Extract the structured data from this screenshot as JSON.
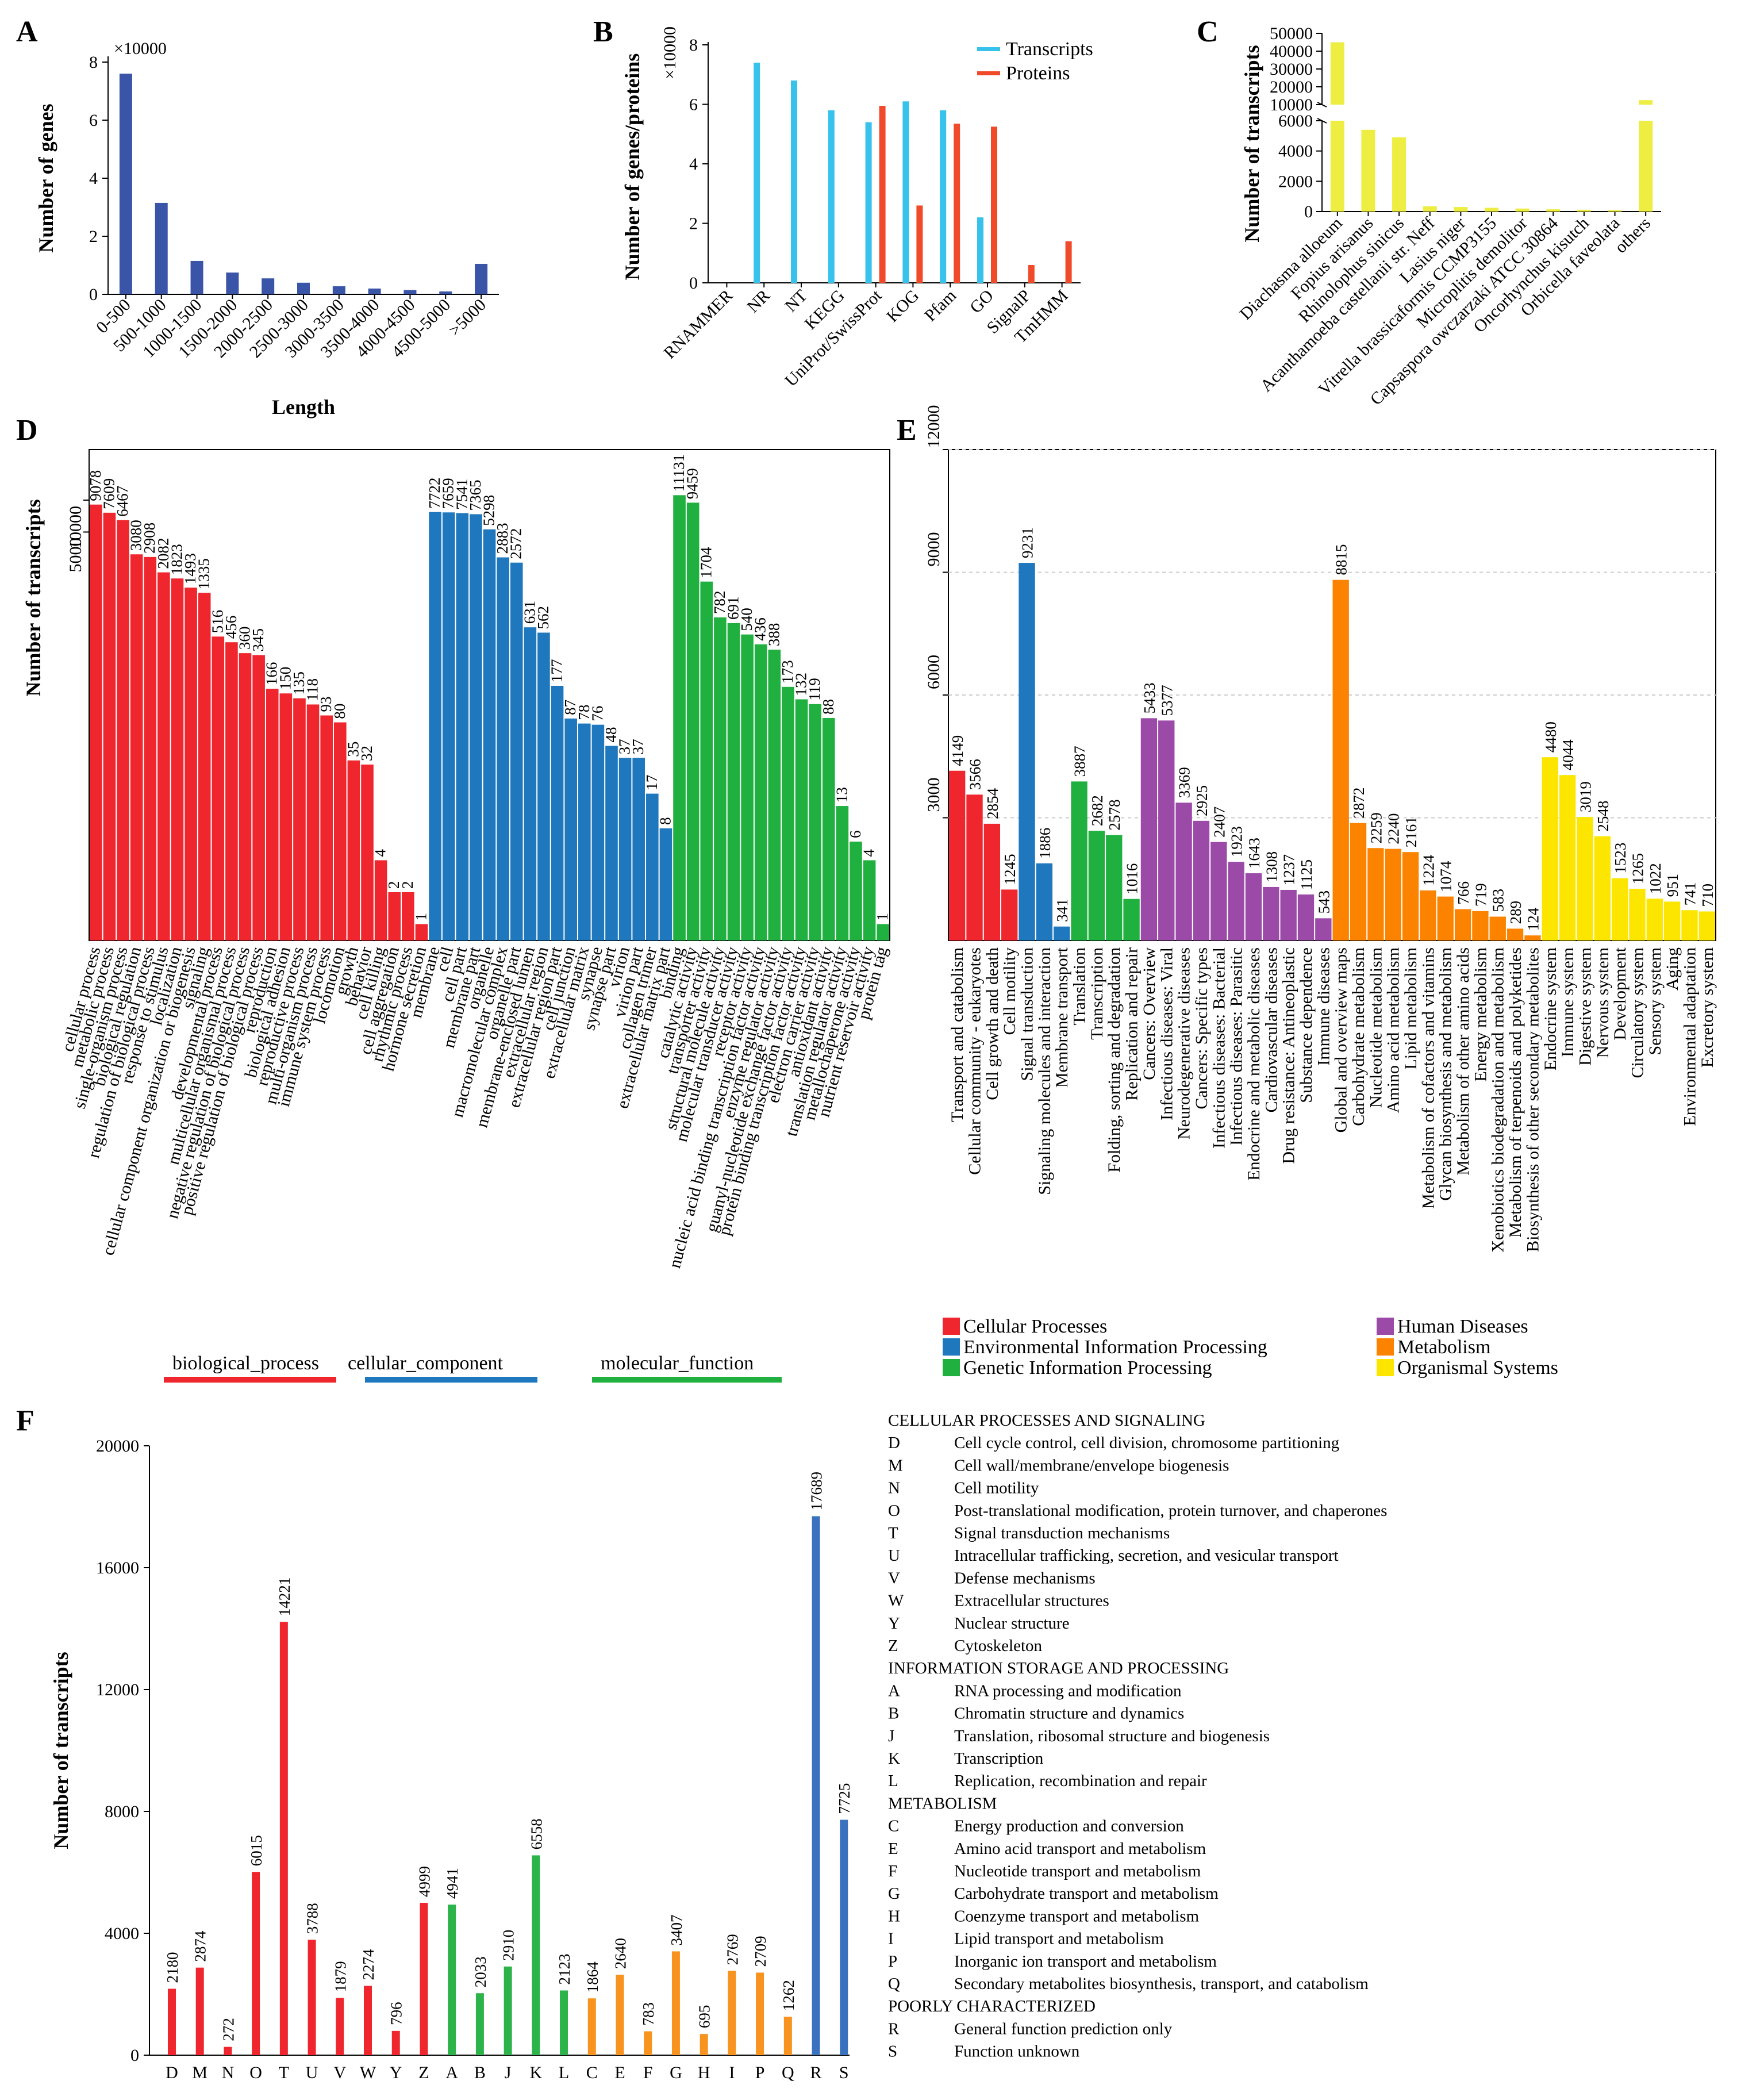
{
  "colors": {
    "navy": "#3a55a8",
    "cyan": "#36c2ea",
    "red_orange": "#f04a2a",
    "yellow": "#eded42",
    "red": "#f0262e",
    "blue": "#1f78bd",
    "green": "#20b040",
    "purple": "#9b4aa8",
    "orange": "#fb8300",
    "gold": "#fce600",
    "cog_green": "#2cb34a",
    "cog_orange": "#f7931e",
    "cog_blue": "#3a72bf"
  },
  "chart_data": [
    {
      "panel": "A",
      "type": "bar",
      "xlabel": "Length",
      "ylabel": "Number of genes",
      "multiplier_label": "×10000",
      "ylim": [
        0,
        8
      ],
      "yticks": [
        "0",
        "2",
        "4",
        "6",
        "8"
      ],
      "categories": [
        "0-500",
        "500-1000",
        "1000-1500",
        "1500-2000",
        "2000-2500",
        "2500-3000",
        "3000-3500",
        "3500-4000",
        "4000-4500",
        "4500-5000",
        ">5000"
      ],
      "values": [
        7.6,
        3.15,
        1.15,
        0.75,
        0.55,
        0.4,
        0.28,
        0.2,
        0.15,
        0.1,
        1.05
      ]
    },
    {
      "panel": "B",
      "type": "bar",
      "ylabel": "Number of genes/proteins",
      "multiplier_label": "×10000",
      "ylim": [
        0,
        8
      ],
      "yticks": [
        "0",
        "2",
        "4",
        "6",
        "8"
      ],
      "categories": [
        "RNAMMER",
        "NR",
        "NT",
        "KEGG",
        "UniProt/SwissProt",
        "KOG",
        "Pfam",
        "GO",
        "SignalP",
        "TmHMM"
      ],
      "series": [
        {
          "name": "Transcripts",
          "values": [
            0,
            7.4,
            6.8,
            5.8,
            5.4,
            6.1,
            5.8,
            2.2,
            0,
            0
          ]
        },
        {
          "name": "Proteins",
          "values": [
            0,
            0,
            0,
            0,
            5.95,
            2.6,
            5.35,
            5.25,
            0.6,
            1.4
          ]
        }
      ]
    },
    {
      "panel": "C",
      "type": "bar",
      "ylabel": "Number of transcripts",
      "yticks_lower": [
        "0",
        "2000",
        "4000",
        "6000"
      ],
      "yticks_upper": [
        "10000",
        "20000",
        "30000",
        "40000",
        "50000"
      ],
      "categories": [
        "Diachasma alloeum",
        "Fopius arisanus",
        "Rhinolophus sinicus",
        "Acanthamoeba castellanii str. Neff",
        "Lasius niger",
        "Vitrella brassicaformis CCMP3155",
        "Microplitis demolitor",
        "Capsaspora owczarzaki ATCC 30864",
        "Oncorhynchus kisutch",
        "Orbicella faveolata",
        "others"
      ],
      "values": [
        45000,
        5400,
        4900,
        350,
        300,
        250,
        200,
        150,
        120,
        100,
        12500
      ]
    },
    {
      "panel": "D",
      "type": "bar",
      "ylabel": "Number of transcripts",
      "yscale": "log",
      "yticks": [
        "5000",
        "10000"
      ],
      "groups": [
        {
          "name": "biological_process",
          "categories": [
            "cellular process",
            "metabolic process",
            "single-organism process",
            "biological regulation",
            "regulation of biological process",
            "response to stimulus",
            "localization",
            "cellular component organization or biogenesis",
            "signaling",
            "developmental process",
            "multicellular organismal process",
            "negative regulation of biological process",
            "positive regulation of biological process",
            "reproduction",
            "biological adhesion",
            "reproductive process",
            "multi-organism process",
            "immune system process",
            "locomotion",
            "growth",
            "behavior",
            "cell killing",
            "cell aggregation",
            "rhythmic process",
            "hormone secretion"
          ],
          "values": [
            9078,
            7609,
            6467,
            3080,
            2908,
            2082,
            1823,
            1493,
            1335,
            516,
            456,
            360,
            345,
            166,
            150,
            135,
            118,
            93,
            80,
            35,
            32,
            4,
            2,
            2,
            1
          ],
          "labels": [
            "9078",
            "7609",
            "6467",
            "3080",
            "2908",
            "2082",
            "1823",
            "1493",
            "1335",
            "516",
            "456",
            "360",
            "345",
            "166",
            "150",
            "135",
            "118",
            "93",
            "80",
            "35",
            "32",
            "4",
            "2",
            "2",
            "1"
          ]
        },
        {
          "name": "cellular_component",
          "categories": [
            "membrane",
            "cell",
            "cell part",
            "membrane part",
            "organelle",
            "macromolecular complex",
            "organelle part",
            "membrane-enclosed lumen",
            "extracellular region",
            "extracellular region part",
            "cell junction",
            "extracellular matrix",
            "synapse",
            "synapse part",
            "virion",
            "virion part",
            "collagen trimer",
            "extracellular matrix part"
          ],
          "values": [
            7722,
            7659,
            7541,
            7365,
            5298,
            2883,
            2572,
            631,
            562,
            177,
            87,
            78,
            76,
            48,
            37,
            37,
            17,
            8
          ],
          "labels": [
            "7722",
            "7659",
            "7541",
            "7365",
            "5298",
            "2883",
            "2572",
            "631",
            "562",
            "177",
            "87",
            "78",
            "76",
            "48",
            "37",
            "37",
            "17",
            "8"
          ]
        },
        {
          "name": "molecular_function",
          "categories": [
            "binding",
            "catalytic activity",
            "transporter activity",
            "structural molecule activity",
            "molecular transducer activity",
            "receptor activity",
            "nucleic acid binding transcription factor activity",
            "enzyme regulator activity",
            "guanyl-nucleotide exchange factor activity",
            "protein binding transcription factor activity",
            "electron carrier activity",
            "antioxidant activity",
            "translation regulator activity",
            "metallochaperone activity",
            "nutrient reservoir activity",
            "protein tag"
          ],
          "values": [
            11131,
            9459,
            1704,
            782,
            691,
            540,
            436,
            388,
            173,
            132,
            119,
            88,
            13,
            6,
            4,
            1
          ],
          "labels": [
            "11131",
            "9459",
            "1704",
            "782",
            "691",
            "540",
            "436",
            "388",
            "173",
            "132",
            "119",
            "88",
            "13",
            "6",
            "4",
            "1"
          ]
        }
      ]
    },
    {
      "panel": "E",
      "type": "bar",
      "ylabel": "",
      "ylim": [
        0,
        12000
      ],
      "yticks": [
        "3000",
        "6000",
        "9000",
        "12000"
      ],
      "groups": [
        {
          "name": "Cellular Processes",
          "categories": [
            "Transport and catabolism",
            "Cellular community - eukaryotes",
            "Cell growth and death",
            "Cell motility"
          ],
          "values": [
            4149,
            3566,
            2854,
            1245
          ],
          "labels": [
            "4149",
            "3566",
            "2854",
            "1245"
          ]
        },
        {
          "name": "Environmental Information Processing",
          "categories": [
            "Signal transduction",
            "Signaling molecules and interaction",
            "Membrane transport"
          ],
          "values": [
            9231,
            1886,
            341
          ],
          "labels": [
            "9231",
            "1886",
            "341"
          ]
        },
        {
          "name": "Genetic Information Processing",
          "categories": [
            "Translation",
            "Transcription",
            "Folding, sorting and degradation",
            "Replication and repair"
          ],
          "values": [
            3887,
            2682,
            2578,
            1016
          ],
          "labels": [
            "3887",
            "2682",
            "2578",
            "1016"
          ]
        },
        {
          "name": "Human Diseases",
          "categories": [
            "Cancers: Overview",
            "Infectious diseases: Viral",
            "Neurodegenerative diseases",
            "Cancers: Specific types",
            "Infectious diseases: Bacterial",
            "Infectious diseases: Parasitic",
            "Endocrine and metabolic diseases",
            "Cardiovascular diseases",
            "Drug resistance: Antineoplastic",
            "Substance dependence",
            "Immune diseases"
          ],
          "values": [
            5433,
            5377,
            3369,
            2925,
            2407,
            1923,
            1643,
            1308,
            1237,
            1125,
            543
          ],
          "labels": [
            "5433",
            "5377",
            "3369",
            "2925",
            "2407",
            "1923",
            "1643",
            "1308",
            "1237",
            "1125",
            "543"
          ]
        },
        {
          "name": "Metabolism",
          "categories": [
            "Global and overview maps",
            "Carbohydrate metabolism",
            "Nucleotide metabolism",
            "Amino acid metabolism",
            "Lipid metabolism",
            "Metabolism of cofactors and vitamins",
            "Glycan biosynthesis and metabolism",
            "Metabolism of other amino acids",
            "Energy metabolism",
            "Xenobiotics biodegradation and metabolism",
            "Metabolism of terpenoids and polyketides",
            "Biosynthesis of other secondary metabolites"
          ],
          "values": [
            8815,
            2872,
            2259,
            2240,
            2161,
            1224,
            1074,
            766,
            719,
            583,
            289,
            124
          ],
          "labels": [
            "8815",
            "2872",
            "2259",
            "2240",
            "2161",
            "1224",
            "1074",
            "766",
            "719",
            "583",
            "289",
            "124"
          ]
        },
        {
          "name": "Organismal Systems",
          "categories": [
            "Endocrine system",
            "Immune system",
            "Digestive system",
            "Nervous system",
            "Development",
            "Circulatory system",
            "Sensory system",
            "Aging",
            "Environmental adaptation",
            "Excretory system"
          ],
          "values": [
            4480,
            4044,
            3019,
            2548,
            1523,
            1265,
            1022,
            951,
            741,
            710
          ],
          "labels": [
            "4480",
            "4044",
            "3019",
            "2548",
            "1523",
            "1265",
            "1022",
            "951",
            "741",
            "710"
          ]
        }
      ],
      "legend": [
        "Cellular Processes",
        "Environmental Information Processing",
        "Genetic Information Processing",
        "Human Diseases",
        "Metabolism",
        "Organismal Systems"
      ]
    },
    {
      "panel": "F",
      "type": "bar",
      "ylabel": "Number of transcripts",
      "ylim": [
        0,
        20000
      ],
      "yticks": [
        "0",
        "4000",
        "8000",
        "12000",
        "16000",
        "20000"
      ],
      "categories": [
        "D",
        "M",
        "N",
        "O",
        "T",
        "U",
        "V",
        "W",
        "Y",
        "Z",
        "A",
        "B",
        "J",
        "K",
        "L",
        "C",
        "E",
        "F",
        "G",
        "H",
        "I",
        "P",
        "Q",
        "R",
        "S"
      ],
      "values": [
        2180,
        2874,
        272,
        6015,
        14221,
        3788,
        1879,
        2274,
        796,
        4999,
        4941,
        2033,
        2910,
        6558,
        2123,
        1864,
        2640,
        783,
        3407,
        695,
        2769,
        2709,
        1262,
        17689,
        7725
      ],
      "labels": [
        "2180",
        "2874",
        "272",
        "6015",
        "14221",
        "3788",
        "1879",
        "2274",
        "796",
        "4999",
        "4941",
        "2033",
        "2910",
        "6558",
        "2123",
        "1864",
        "2640",
        "783",
        "3407",
        "695",
        "2769",
        "2709",
        "1262",
        "17689",
        "7725"
      ],
      "groups": [
        "cellular",
        "cellular",
        "cellular",
        "cellular",
        "cellular",
        "cellular",
        "cellular",
        "cellular",
        "cellular",
        "cellular",
        "info",
        "info",
        "info",
        "info",
        "info",
        "meta",
        "meta",
        "meta",
        "meta",
        "meta",
        "meta",
        "meta",
        "meta",
        "poor",
        "poor"
      ]
    }
  ],
  "panel_letters": [
    "A",
    "B",
    "C",
    "D",
    "E",
    "F"
  ],
  "d_group_labels": [
    "biological_process",
    "cellular_component",
    "molecular_function"
  ],
  "cog_legend": [
    {
      "heading": "CELLULAR PROCESSES AND SIGNALING",
      "group": "cellular",
      "items": [
        {
          "code": "D",
          "desc": "Cell cycle control, cell division, chromosome partitioning"
        },
        {
          "code": "M",
          "desc": "Cell wall/membrane/envelope biogenesis"
        },
        {
          "code": "N",
          "desc": "Cell motility"
        },
        {
          "code": "O",
          "desc": "Post-translational modification, protein turnover, and chaperones"
        },
        {
          "code": "T",
          "desc": "Signal transduction mechanisms"
        },
        {
          "code": "U",
          "desc": "Intracellular trafficking, secretion, and vesicular transport"
        },
        {
          "code": "V",
          "desc": "Defense mechanisms"
        },
        {
          "code": "W",
          "desc": "Extracellular structures"
        },
        {
          "code": "Y",
          "desc": "Nuclear structure"
        },
        {
          "code": "Z",
          "desc": "Cytoskeleton"
        }
      ]
    },
    {
      "heading": "INFORMATION STORAGE AND PROCESSING",
      "group": "info",
      "items": [
        {
          "code": "A",
          "desc": "RNA processing and modification"
        },
        {
          "code": "B",
          "desc": "Chromatin structure and dynamics"
        },
        {
          "code": "J",
          "desc": "Translation, ribosomal structure and biogenesis"
        },
        {
          "code": "K",
          "desc": "Transcription"
        },
        {
          "code": "L",
          "desc": "Replication, recombination and repair"
        }
      ]
    },
    {
      "heading": "METABOLISM",
      "group": "meta",
      "items": [
        {
          "code": "C",
          "desc": "Energy production and conversion"
        },
        {
          "code": "E",
          "desc": "Amino acid transport and metabolism"
        },
        {
          "code": "F",
          "desc": "Nucleotide transport and metabolism"
        },
        {
          "code": "G",
          "desc": "Carbohydrate transport and metabolism"
        },
        {
          "code": "H",
          "desc": "Coenzyme transport and metabolism"
        },
        {
          "code": "I",
          "desc": "Lipid transport and metabolism"
        },
        {
          "code": "P",
          "desc": "Inorganic ion transport and metabolism"
        },
        {
          "code": "Q",
          "desc": "Secondary metabolites biosynthesis, transport, and catabolism"
        }
      ]
    },
    {
      "heading": "POORLY CHARACTERIZED",
      "group": "poor",
      "items": [
        {
          "code": "R",
          "desc": "General function prediction only"
        },
        {
          "code": "S",
          "desc": "Function unknown"
        }
      ]
    }
  ]
}
